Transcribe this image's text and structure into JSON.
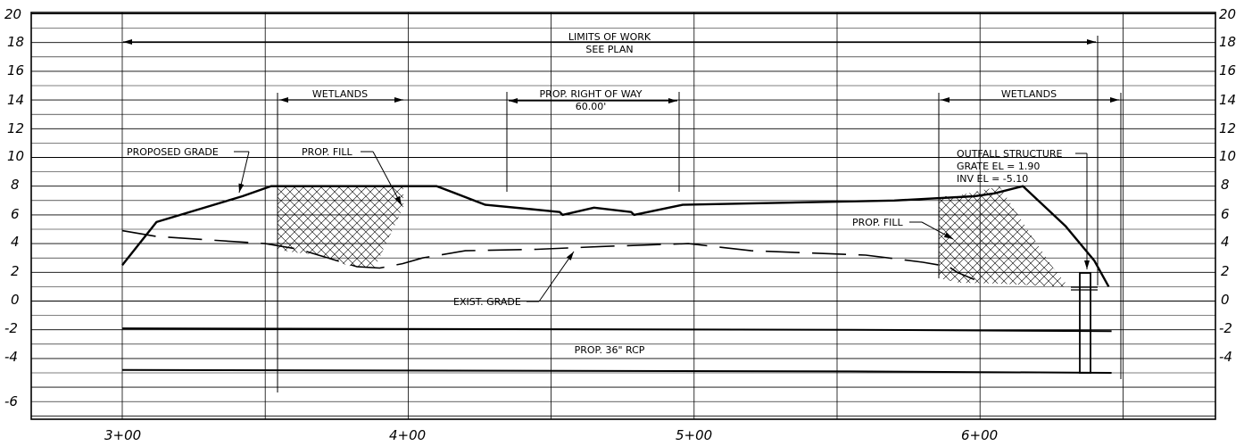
{
  "elevation_labels": [
    "20",
    "18",
    "16",
    "14",
    "12",
    "10",
    "8",
    "6",
    "4",
    "2",
    "0",
    "-2",
    "-4",
    "-6"
  ],
  "station_labels": [
    "3+00",
    "4+00",
    "5+00",
    "6+00"
  ],
  "annotations": {
    "limits_of_work": "LIMITS OF WORK",
    "see_plan": "SEE PLAN",
    "wetlands_left": "WETLANDS",
    "wetlands_right": "WETLANDS",
    "right_of_way": "PROP. RIGHT OF WAY",
    "right_of_way_width": "60.00'",
    "proposed_grade": "PROPOSED GRADE",
    "prop_fill_left": "PROP. FILL",
    "prop_fill_right": "PROP. FILL",
    "outfall_structure": "OUTFALL STRUCTURE",
    "grate_el": "GRATE EL = 1.90",
    "inv_el": "INV EL = -5.10",
    "exist_grade": "EXIST. GRADE",
    "pipe": "PROP. 36\" RCP"
  },
  "chart_data": {
    "type": "line",
    "x_unit": "station (ft)",
    "y_unit": "elevation (ft)",
    "xlim": [
      290,
      670
    ],
    "ylim": [
      -7,
      20
    ],
    "x_ticks": [
      300,
      400,
      500,
      600
    ],
    "series": [
      {
        "id": "proposed-grade",
        "style": "solid",
        "points": [
          [
            300,
            2.5
          ],
          [
            312,
            5.5
          ],
          [
            342,
            7.3
          ],
          [
            352,
            8
          ],
          [
            410,
            8
          ],
          [
            427,
            6.7
          ],
          [
            443,
            6.4
          ],
          [
            453,
            6.2
          ],
          [
            454,
            6.0
          ],
          [
            465,
            6.5
          ],
          [
            478,
            6.2
          ],
          [
            479,
            6.0
          ],
          [
            496,
            6.7
          ],
          [
            570,
            7.0
          ],
          [
            598,
            7.3
          ],
          [
            605,
            7.5
          ],
          [
            615,
            8
          ],
          [
            630,
            5.2
          ],
          [
            640,
            2.8
          ],
          [
            645,
            1.0
          ]
        ]
      },
      {
        "id": "existing-grade",
        "style": "dashed",
        "points": [
          [
            300,
            4.9
          ],
          [
            312,
            4.5
          ],
          [
            350,
            4.0
          ],
          [
            362,
            3.6
          ],
          [
            382,
            2.4
          ],
          [
            390,
            2.3
          ],
          [
            398,
            2.6
          ],
          [
            405,
            3.0
          ],
          [
            420,
            3.5
          ],
          [
            445,
            3.6
          ],
          [
            468,
            3.8
          ],
          [
            498,
            4.0
          ],
          [
            520,
            3.5
          ],
          [
            560,
            3.2
          ],
          [
            580,
            2.7
          ],
          [
            589,
            2.4
          ],
          [
            592,
            2.0
          ],
          [
            598,
            1.5
          ]
        ]
      },
      {
        "id": "pipe-invert-upper",
        "style": "solid",
        "points": [
          [
            300,
            -1.9
          ],
          [
            555,
            -2.0
          ],
          [
            646,
            -2.1
          ]
        ]
      },
      {
        "id": "pipe-invert-lower",
        "style": "solid",
        "points": [
          [
            300,
            -4.8
          ],
          [
            555,
            -4.9
          ],
          [
            646,
            -5.0
          ]
        ]
      }
    ]
  }
}
